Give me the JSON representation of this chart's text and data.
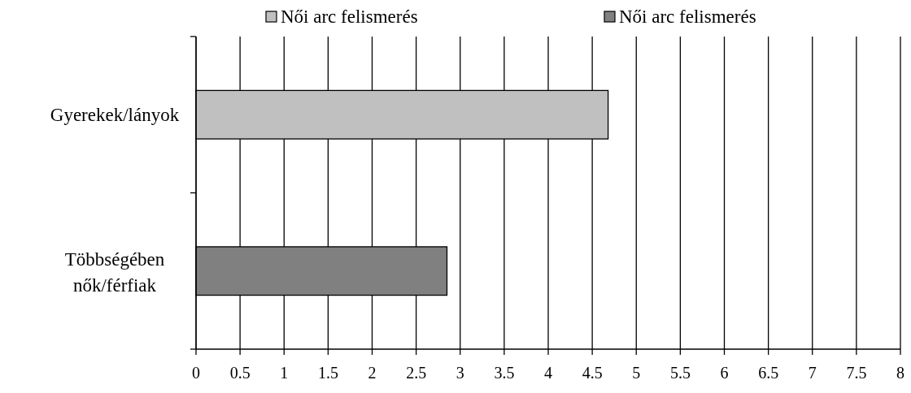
{
  "chart_data": {
    "type": "bar",
    "orientation": "horizontal",
    "categories": [
      "Gyerekek/lányok",
      "Többségében\nnők/férfiak"
    ],
    "series": [
      {
        "name": "Női arc felismerés",
        "color": "#c0c0c0",
        "values": [
          4.68,
          null
        ]
      },
      {
        "name": "Női arc felismerés",
        "color": "#808080",
        "values": [
          null,
          2.85
        ]
      }
    ],
    "xlim": [
      0,
      8
    ],
    "xticks": [
      0,
      0.5,
      1,
      1.5,
      2,
      2.5,
      3,
      3.5,
      4,
      4.5,
      5,
      5.5,
      6,
      6.5,
      7,
      7.5,
      8
    ],
    "grid": "x",
    "legend": "top"
  }
}
